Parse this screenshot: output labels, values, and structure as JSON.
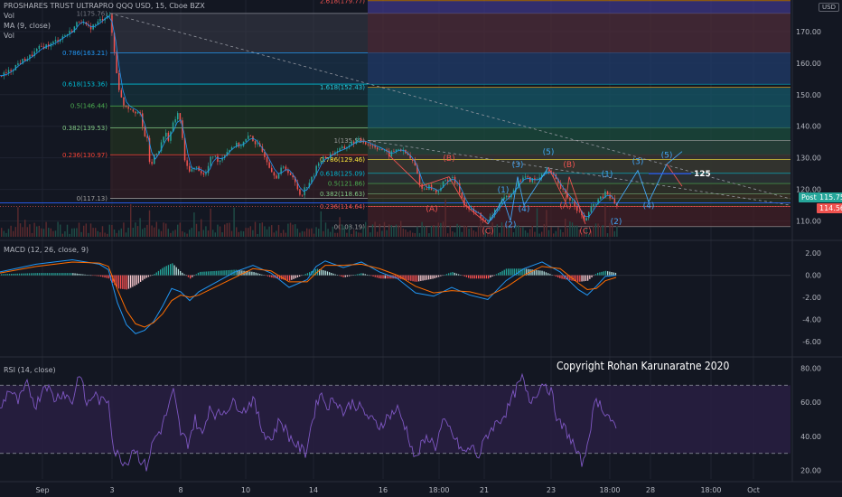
{
  "header": {
    "title": "PROSHARES TRUST ULTRAPRO QQQ USD, 15, Cboe BZX",
    "ind_vol": "Vol",
    "ind_ma": "MA (9, close)",
    "ind_vol2": "Vol",
    "currency_button": "USD"
  },
  "macd_label": "MACD (12, 26, close, 9)",
  "rsi_label": "RSI (14, close)",
  "copyright": "Copyright Rohan Karunaratne 2020",
  "price_tags": {
    "post_label": "Post",
    "post_value": "115.75",
    "last_value": "114.56"
  },
  "target_label": "125",
  "colors": {
    "bg": "#131722",
    "candle_up": "#26a69a",
    "candle_down": "#ef5350",
    "macd": "#2196f3",
    "signal": "#ff6d00",
    "rsi": "#7e57c2",
    "wave_blue": "#42a5f5",
    "wave_red": "#ef5350"
  },
  "chart_data": [
    {
      "type": "candlestick",
      "ylim": [
        105,
        180
      ],
      "y_ticks": [
        "170.00",
        "160.00",
        "150.00",
        "140.00",
        "130.00",
        "120.00",
        "110.00"
      ],
      "x_ticks": [
        "Sep",
        "3",
        "8",
        "10",
        "14",
        "16",
        "18:00",
        "21",
        "23",
        "18:00",
        "28",
        "18:00",
        "Oct"
      ],
      "close_path": [
        [
          0,
          156
        ],
        [
          8,
          157
        ],
        [
          20,
          160
        ],
        [
          32,
          162
        ],
        [
          44,
          165
        ],
        [
          56,
          166
        ],
        [
          66,
          168
        ],
        [
          78,
          170
        ],
        [
          88,
          174
        ],
        [
          96,
          171
        ],
        [
          104,
          172
        ],
        [
          112,
          174
        ],
        [
          120,
          175.76
        ],
        [
          124,
          168
        ],
        [
          128,
          158
        ],
        [
          132,
          150
        ],
        [
          136,
          147
        ],
        [
          142,
          146
        ],
        [
          148,
          145
        ],
        [
          154,
          144
        ],
        [
          158,
          138
        ],
        [
          162,
          136
        ],
        [
          166,
          126
        ],
        [
          170,
          131
        ],
        [
          176,
          133
        ],
        [
          182,
          138
        ],
        [
          186,
          136
        ],
        [
          190,
          140
        ],
        [
          196,
          144
        ],
        [
          200,
          140
        ],
        [
          204,
          128
        ],
        [
          210,
          126
        ],
        [
          218,
          127
        ],
        [
          226,
          124
        ],
        [
          234,
          131
        ],
        [
          242,
          129
        ],
        [
          250,
          132
        ],
        [
          258,
          134
        ],
        [
          266,
          134
        ],
        [
          276,
          137
        ],
        [
          284,
          134
        ],
        [
          292,
          131
        ],
        [
          300,
          126
        ],
        [
          306,
          124
        ],
        [
          312,
          127
        ],
        [
          318,
          126
        ],
        [
          326,
          122
        ],
        [
          332,
          118
        ],
        [
          338,
          121
        ],
        [
          346,
          124
        ],
        [
          352,
          129
        ],
        [
          360,
          130
        ],
        [
          370,
          132
        ],
        [
          380,
          133
        ],
        [
          390,
          135
        ],
        [
          400,
          135.53
        ],
        [
          410,
          134
        ],
        [
          420,
          133
        ],
        [
          430,
          131
        ],
        [
          440,
          133
        ],
        [
          450,
          131
        ],
        [
          458,
          128
        ],
        [
          466,
          120
        ],
        [
          474,
          121
        ],
        [
          482,
          119
        ],
        [
          490,
          122
        ],
        [
          498,
          124
        ],
        [
          506,
          121
        ],
        [
          514,
          115
        ],
        [
          522,
          113
        ],
        [
          530,
          112
        ],
        [
          538,
          109
        ],
        [
          546,
          113
        ],
        [
          554,
          116
        ],
        [
          562,
          118
        ],
        [
          570,
          121
        ],
        [
          578,
          124
        ],
        [
          586,
          123
        ],
        [
          594,
          123
        ],
        [
          602,
          126
        ],
        [
          610,
          125
        ],
        [
          618,
          121
        ],
        [
          626,
          118
        ],
        [
          634,
          116
        ],
        [
          640,
          113
        ],
        [
          646,
          110
        ],
        [
          652,
          113
        ],
        [
          658,
          116
        ],
        [
          664,
          117
        ],
        [
          670,
          119
        ],
        [
          676,
          117
        ],
        [
          682,
          114.56
        ]
      ],
      "ma_9": "smoothed close",
      "fib_retracement_1": {
        "levels": [
          "1(175.76)",
          "0.786(163.21)",
          "0.618(153.36)",
          "0.5(146.44)",
          "0.382(139.53)",
          "0.236(130.97)",
          "0(117.13)"
        ],
        "values": [
          175.76,
          163.21,
          153.36,
          146.44,
          139.53,
          130.97,
          117.13
        ]
      },
      "fib_extension": {
        "levels": [
          "2.618(179.77)",
          "1.618(152.43)"
        ],
        "values": [
          179.77,
          152.43
        ]
      },
      "fib_retracement_2": {
        "levels": [
          "1(135.53)",
          "0.786(129.46)",
          "0.618(125.09)",
          "0.5(121.86)",
          "0.382(118.63)",
          "0.236(114.64)",
          "0(108.19)"
        ],
        "values": [
          135.53,
          129.46,
          125.09,
          121.86,
          118.63,
          114.64,
          108.19
        ]
      },
      "wave_labels": [
        {
          "text": "(A)",
          "color": "red",
          "x": 478,
          "y": 113
        },
        {
          "text": "(B)",
          "color": "red",
          "x": 497,
          "y": 129
        },
        {
          "text": "(C)",
          "color": "red",
          "x": 540,
          "y": 106
        },
        {
          "text": "(1)",
          "color": "blue",
          "x": 557,
          "y": 119
        },
        {
          "text": "(2)",
          "color": "blue",
          "x": 565,
          "y": 108
        },
        {
          "text": "(3)",
          "color": "blue",
          "x": 573,
          "y": 127
        },
        {
          "text": "(4)",
          "color": "blue",
          "x": 580,
          "y": 113
        },
        {
          "text": "(5)",
          "color": "blue",
          "x": 607,
          "y": 131
        },
        {
          "text": "(B)",
          "color": "red",
          "x": 630,
          "y": 127
        },
        {
          "text": "(A)",
          "color": "red",
          "x": 626,
          "y": 114
        },
        {
          "text": "(C)",
          "color": "red",
          "x": 648,
          "y": 106
        },
        {
          "text": "(1)",
          "color": "blue",
          "x": 672,
          "y": 124
        },
        {
          "text": "(2)",
          "color": "blue",
          "x": 682,
          "y": 109
        },
        {
          "text": "(3)",
          "color": "blue",
          "x": 706,
          "y": 128
        },
        {
          "text": "(4)",
          "color": "blue",
          "x": 718,
          "y": 114
        },
        {
          "text": "(5)",
          "color": "blue",
          "x": 738,
          "y": 130
        }
      ]
    },
    {
      "type": "line",
      "name": "MACD",
      "ylim": [
        -7,
        3
      ],
      "y_ticks": [
        "2.00",
        "0.00",
        "-2.00",
        "-4.00",
        "-6.00"
      ],
      "macd": [
        [
          0,
          0.3
        ],
        [
          40,
          1.0
        ],
        [
          80,
          1.4
        ],
        [
          110,
          1.0
        ],
        [
          120,
          0.5
        ],
        [
          130,
          -2.5
        ],
        [
          140,
          -4.5
        ],
        [
          150,
          -5.3
        ],
        [
          160,
          -5.0
        ],
        [
          170,
          -4.2
        ],
        [
          180,
          -2.8
        ],
        [
          190,
          -1.2
        ],
        [
          200,
          -1.5
        ],
        [
          210,
          -2.3
        ],
        [
          220,
          -1.5
        ],
        [
          240,
          -0.6
        ],
        [
          260,
          0.3
        ],
        [
          280,
          0.9
        ],
        [
          300,
          0.2
        ],
        [
          320,
          -1.1
        ],
        [
          340,
          -0.4
        ],
        [
          350,
          0.8
        ],
        [
          360,
          1.3
        ],
        [
          380,
          0.7
        ],
        [
          400,
          1.2
        ],
        [
          420,
          0.3
        ],
        [
          440,
          -0.3
        ],
        [
          460,
          -1.6
        ],
        [
          480,
          -1.9
        ],
        [
          500,
          -1.1
        ],
        [
          520,
          -1.8
        ],
        [
          540,
          -2.2
        ],
        [
          560,
          -0.5
        ],
        [
          580,
          0.6
        ],
        [
          600,
          1.2
        ],
        [
          620,
          0.3
        ],
        [
          640,
          -1.3
        ],
        [
          650,
          -1.8
        ],
        [
          660,
          -1.0
        ],
        [
          670,
          -0.1
        ],
        [
          682,
          0.0
        ]
      ],
      "signal": [
        [
          0,
          0.2
        ],
        [
          40,
          0.8
        ],
        [
          80,
          1.2
        ],
        [
          110,
          1.1
        ],
        [
          120,
          0.8
        ],
        [
          130,
          -1.3
        ],
        [
          140,
          -3.2
        ],
        [
          150,
          -4.4
        ],
        [
          160,
          -4.7
        ],
        [
          170,
          -4.3
        ],
        [
          180,
          -3.5
        ],
        [
          190,
          -2.3
        ],
        [
          200,
          -1.8
        ],
        [
          210,
          -2.0
        ],
        [
          220,
          -1.8
        ],
        [
          240,
          -1.0
        ],
        [
          260,
          -0.2
        ],
        [
          280,
          0.6
        ],
        [
          300,
          0.4
        ],
        [
          320,
          -0.6
        ],
        [
          340,
          -0.6
        ],
        [
          350,
          0.2
        ],
        [
          360,
          0.9
        ],
        [
          380,
          0.9
        ],
        [
          400,
          1.0
        ],
        [
          420,
          0.6
        ],
        [
          440,
          0.0
        ],
        [
          460,
          -1.0
        ],
        [
          480,
          -1.6
        ],
        [
          500,
          -1.4
        ],
        [
          520,
          -1.5
        ],
        [
          540,
          -1.9
        ],
        [
          560,
          -1.1
        ],
        [
          580,
          0.0
        ],
        [
          600,
          0.8
        ],
        [
          620,
          0.6
        ],
        [
          640,
          -0.7
        ],
        [
          650,
          -1.3
        ],
        [
          660,
          -1.2
        ],
        [
          670,
          -0.5
        ],
        [
          682,
          -0.2
        ]
      ]
    },
    {
      "type": "line",
      "name": "RSI",
      "ylim": [
        15,
        85
      ],
      "y_ticks": [
        "80.00",
        "60.00",
        "40.00",
        "20.00"
      ],
      "bands": [
        70,
        30
      ],
      "rsi": [
        [
          0,
          55
        ],
        [
          10,
          68
        ],
        [
          20,
          60
        ],
        [
          30,
          70
        ],
        [
          40,
          58
        ],
        [
          50,
          72
        ],
        [
          60,
          62
        ],
        [
          70,
          66
        ],
        [
          80,
          60
        ],
        [
          88,
          78
        ],
        [
          96,
          58
        ],
        [
          104,
          65
        ],
        [
          112,
          60
        ],
        [
          120,
          62
        ],
        [
          126,
          32
        ],
        [
          132,
          28
        ],
        [
          140,
          24
        ],
        [
          148,
          34
        ],
        [
          156,
          26
        ],
        [
          162,
          22
        ],
        [
          170,
          38
        ],
        [
          178,
          44
        ],
        [
          186,
          56
        ],
        [
          192,
          66
        ],
        [
          200,
          42
        ],
        [
          208,
          36
        ],
        [
          216,
          50
        ],
        [
          224,
          40
        ],
        [
          232,
          58
        ],
        [
          240,
          52
        ],
        [
          250,
          56
        ],
        [
          260,
          60
        ],
        [
          270,
          55
        ],
        [
          280,
          62
        ],
        [
          290,
          44
        ],
        [
          300,
          38
        ],
        [
          310,
          50
        ],
        [
          320,
          40
        ],
        [
          330,
          34
        ],
        [
          338,
          30
        ],
        [
          346,
          50
        ],
        [
          354,
          66
        ],
        [
          362,
          58
        ],
        [
          372,
          62
        ],
        [
          380,
          54
        ],
        [
          390,
          60
        ],
        [
          400,
          56
        ],
        [
          410,
          50
        ],
        [
          420,
          46
        ],
        [
          430,
          52
        ],
        [
          440,
          56
        ],
        [
          450,
          44
        ],
        [
          460,
          26
        ],
        [
          466,
          34
        ],
        [
          474,
          40
        ],
        [
          482,
          34
        ],
        [
          490,
          48
        ],
        [
          498,
          44
        ],
        [
          506,
          36
        ],
        [
          514,
          30
        ],
        [
          522,
          34
        ],
        [
          530,
          28
        ],
        [
          538,
          40
        ],
        [
          546,
          46
        ],
        [
          554,
          50
        ],
        [
          562,
          56
        ],
        [
          570,
          66
        ],
        [
          578,
          74
        ],
        [
          586,
          60
        ],
        [
          594,
          66
        ],
        [
          602,
          72
        ],
        [
          610,
          66
        ],
        [
          618,
          48
        ],
        [
          626,
          44
        ],
        [
          634,
          36
        ],
        [
          640,
          28
        ],
        [
          646,
          24
        ],
        [
          652,
          42
        ],
        [
          660,
          62
        ],
        [
          668,
          56
        ],
        [
          676,
          50
        ],
        [
          682,
          42
        ]
      ]
    }
  ]
}
